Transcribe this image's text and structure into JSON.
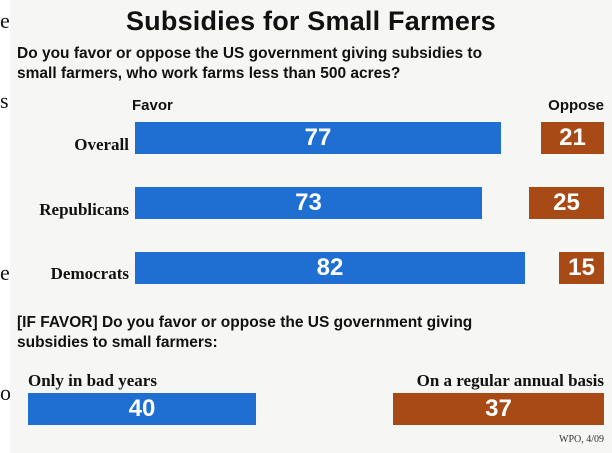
{
  "edge_fragments": [
    "e",
    "s",
    "e",
    "o"
  ],
  "chart_data": [
    {
      "type": "bar",
      "title": "Subsidies for Small Farmers",
      "question": "Do you favor or oppose the US government giving subsidies to small farmers, who work farms less than 500 acres?",
      "question_lines": [
        "Do you favor or oppose the US government giving subsidies to",
        "small farmers, who work farms less than 500 acres?"
      ],
      "favor_label": "Favor",
      "oppose_label": "Oppose",
      "categories": [
        "Overall",
        "Republicans",
        "Democrats"
      ],
      "series": [
        {
          "name": "Favor",
          "values": [
            77,
            73,
            82
          ],
          "color": "#1f6fd2"
        },
        {
          "name": "Oppose",
          "values": [
            21,
            25,
            15
          ],
          "color": "#a84a16"
        }
      ],
      "value_labels": {
        "favor": [
          "77",
          "73",
          "82"
        ],
        "oppose": [
          "21",
          "25",
          "15"
        ]
      }
    },
    {
      "type": "bar",
      "question_lines": [
        "[IF FAVOR] Do you favor or oppose the US government giving",
        "subsidies to small farmers:"
      ],
      "categories": [
        "Only in bad years",
        "On a regular annual basis"
      ],
      "values": [
        40,
        37
      ],
      "value_labels": [
        "40",
        "37"
      ],
      "colors": [
        "#1f6fd2",
        "#a84a16"
      ]
    }
  ],
  "source": "WPO, 4/09"
}
